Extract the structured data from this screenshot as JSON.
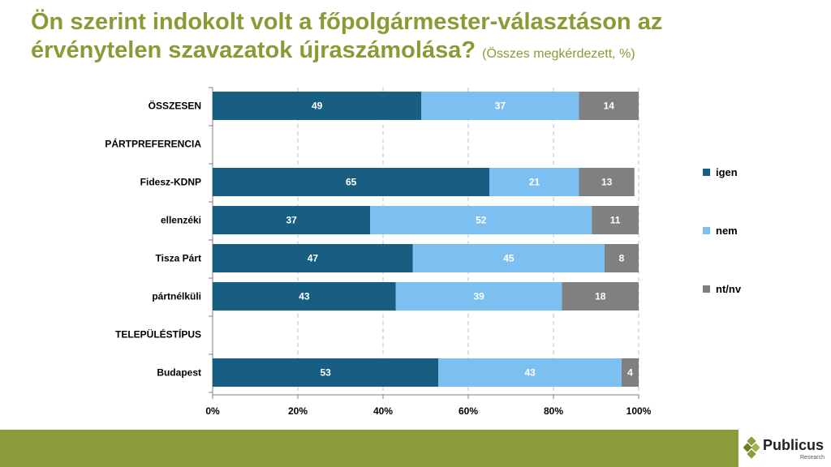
{
  "title": {
    "line1": "Ön szerint indokolt volt a főpolgármester-választáson az",
    "line2": "érvénytelen szavazatok újraszámolása?",
    "subtitle": "(Összes megkérdezett, %)"
  },
  "logo": {
    "name": "Publicus",
    "sub": "Research"
  },
  "colors": {
    "igen": "#175e82",
    "nem": "#7cc0f2",
    "ntnv": "#808080",
    "title": "#8a9a35",
    "footer": "#8d9b3b"
  },
  "chart_data": {
    "type": "bar",
    "orientation": "horizontal",
    "stacked": true,
    "categories": [
      "ÖSSZESEN",
      "PÁRTPREFERENCIA",
      "Fidesz-KDNP",
      "ellenzéki",
      "Tisza Párt",
      "pártnélküli",
      "TELEPÜLÉSTÍPUS",
      "Budapest"
    ],
    "series": [
      {
        "name": "igen",
        "values": [
          49,
          null,
          65,
          37,
          47,
          43,
          null,
          53
        ]
      },
      {
        "name": "nem",
        "values": [
          37,
          null,
          21,
          52,
          45,
          39,
          null,
          43
        ]
      },
      {
        "name": "nt/nv",
        "values": [
          14,
          null,
          13,
          11,
          8,
          18,
          null,
          4
        ]
      }
    ],
    "xlim": [
      0,
      100
    ],
    "xticks": [
      "0%",
      "20%",
      "40%",
      "60%",
      "80%",
      "100%"
    ],
    "grid": true,
    "legend": "right"
  }
}
